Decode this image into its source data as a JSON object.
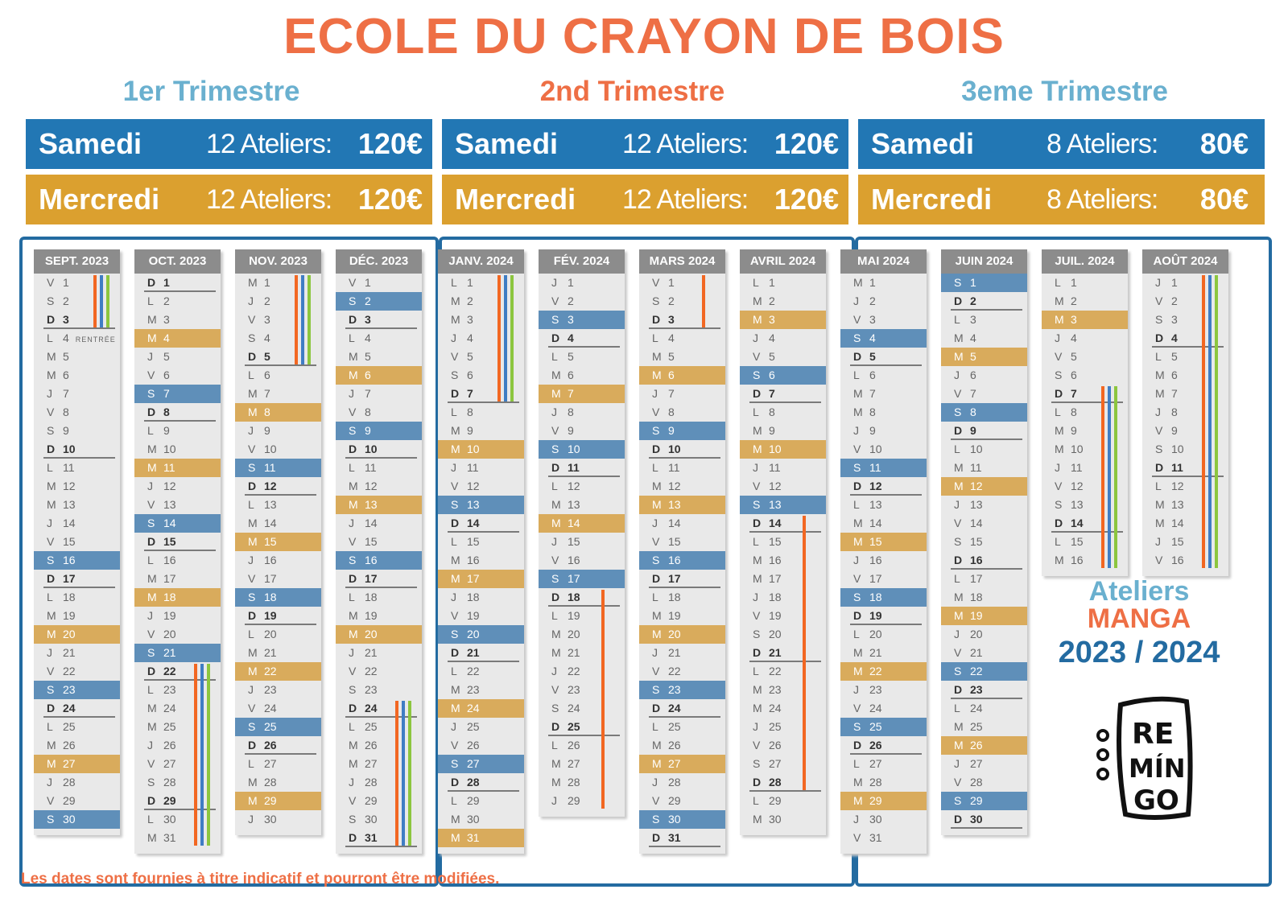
{
  "title": "ECOLE DU CRAYON DE BOIS",
  "colors": {
    "samedi": "#2277b4",
    "mercredi": "#dba02f",
    "title": "#ee6f45",
    "trimester": "#6ab0cf",
    "bar_orange": "#f26722",
    "bar_blue": "#3f7dc4",
    "bar_green": "#8cc63f"
  },
  "trimesters": [
    {
      "title": "1er Trimestre",
      "samedi": {
        "day": "Samedi",
        "count": "12 Ateliers:",
        "price": "120€"
      },
      "mercredi": {
        "day": "Mercredi",
        "count": "12 Ateliers:",
        "price": "120€"
      }
    },
    {
      "title": "2nd Trimestre",
      "samedi": {
        "day": "Samedi",
        "count": "12 Ateliers:",
        "price": "120€"
      },
      "mercredi": {
        "day": "Mercredi",
        "count": "12 Ateliers:",
        "price": "120€"
      }
    },
    {
      "title": "3eme Trimestre",
      "samedi": {
        "day": "Samedi",
        "count": "8 Ateliers:",
        "price": "80€"
      },
      "mercredi": {
        "day": "Mercredi",
        "count": "8 Ateliers:",
        "price": "80€"
      }
    }
  ],
  "months": [
    {
      "name": "SEPT. 2023",
      "days": [
        "V 1",
        "S 2",
        "D 3",
        "L 4",
        "M 5",
        "M 6",
        "J 7",
        "V 8",
        "S 9",
        "D 10",
        "L 11",
        "M 12",
        "M 13",
        "J 14",
        "V 15",
        "S 16",
        "D 17",
        "L 18",
        "M 19",
        "M 20",
        "J 21",
        "V 22",
        "S 23",
        "D 24",
        "L 25",
        "M 26",
        "M 27",
        "J 28",
        "V 29",
        "S 30"
      ],
      "workshop_saturdays": [
        16,
        23,
        30
      ],
      "workshop_wednesdays": [
        20,
        27
      ],
      "notes": {
        "4": "RENTRÉE"
      },
      "holidays": [
        {
          "from": 1,
          "to": 3
        }
      ]
    },
    {
      "name": "OCT. 2023",
      "days": [
        "D 1",
        "L 2",
        "M 3",
        "M 4",
        "J 5",
        "V 6",
        "S 7",
        "D 8",
        "L 9",
        "M 10",
        "M 11",
        "J 12",
        "V 13",
        "S 14",
        "D 15",
        "L 16",
        "M 17",
        "M 18",
        "J 19",
        "V 20",
        "S 21",
        "D 22",
        "L 23",
        "M 24",
        "M 25",
        "J 26",
        "V 27",
        "S 28",
        "D 29",
        "L 30",
        "M 31"
      ],
      "workshop_saturdays": [
        7,
        14,
        21
      ],
      "workshop_wednesdays": [
        4,
        11,
        18
      ],
      "notes": {},
      "holidays": [
        {
          "from": 22,
          "to": 31
        }
      ]
    },
    {
      "name": "NOV. 2023",
      "days": [
        "M 1",
        "J 2",
        "V 3",
        "S 4",
        "D 5",
        "L 6",
        "M 7",
        "M 8",
        "J 9",
        "V 10",
        "S 11",
        "D 12",
        "L 13",
        "M 14",
        "M 15",
        "J 16",
        "V 17",
        "S 18",
        "D 19",
        "L 20",
        "M 21",
        "M 22",
        "J 23",
        "V 24",
        "S 25",
        "D 26",
        "L 27",
        "M 28",
        "M 29",
        "J 30"
      ],
      "workshop_saturdays": [
        11,
        18,
        25
      ],
      "workshop_wednesdays": [
        8,
        15,
        22,
        29
      ],
      "notes": {},
      "holidays": [
        {
          "from": 1,
          "to": 5
        }
      ]
    },
    {
      "name": "DÉC. 2023",
      "days": [
        "V 1",
        "S 2",
        "D 3",
        "L 4",
        "M 5",
        "M 6",
        "J 7",
        "V 8",
        "S 9",
        "D 10",
        "L 11",
        "M 12",
        "M 13",
        "J 14",
        "V 15",
        "S 16",
        "D 17",
        "L 18",
        "M 19",
        "M 20",
        "J 21",
        "V 22",
        "S 23",
        "D 24",
        "L 25",
        "M 26",
        "M 27",
        "J 28",
        "V 29",
        "S 30",
        "D 31"
      ],
      "workshop_saturdays": [
        2,
        9,
        16
      ],
      "workshop_wednesdays": [
        6,
        13,
        20
      ],
      "notes": {},
      "holidays": [
        {
          "from": 24,
          "to": 31
        }
      ]
    },
    {
      "name": "JANV. 2024",
      "days": [
        "L 1",
        "M 2",
        "M 3",
        "J 4",
        "V 5",
        "S 6",
        "D 7",
        "L 8",
        "M 9",
        "M 10",
        "J 11",
        "V 12",
        "S 13",
        "D 14",
        "L 15",
        "M 16",
        "M 17",
        "J 18",
        "V 19",
        "S 20",
        "D 21",
        "L 22",
        "M 23",
        "M 24",
        "J 25",
        "V 26",
        "S 27",
        "D 28",
        "L 29",
        "M 30",
        "M 31"
      ],
      "workshop_saturdays": [
        13,
        20,
        27
      ],
      "workshop_wednesdays": [
        10,
        17,
        24,
        31
      ],
      "notes": {},
      "holidays": [
        {
          "from": 1,
          "to": 7
        }
      ]
    },
    {
      "name": "FÉV. 2024",
      "days": [
        "J 1",
        "V 2",
        "S 3",
        "D 4",
        "L 5",
        "M 6",
        "M 7",
        "J 8",
        "V 9",
        "S 10",
        "D 11",
        "L 12",
        "M 13",
        "M 14",
        "J 15",
        "V 16",
        "S 17",
        "D 18",
        "L 19",
        "M 20",
        "M 21",
        "J 22",
        "V 23",
        "S 24",
        "D 25",
        "L 26",
        "M 27",
        "M 28",
        "J 29"
      ],
      "workshop_saturdays": [
        3,
        10,
        17
      ],
      "workshop_wednesdays": [
        7,
        14
      ],
      "notes": {},
      "holidays": [
        {
          "from": 18,
          "to": 29,
          "only": "orange"
        }
      ]
    },
    {
      "name": "MARS 2024",
      "days": [
        "V 1",
        "S 2",
        "D 3",
        "L 4",
        "M 5",
        "M 6",
        "J 7",
        "V 8",
        "S 9",
        "D 10",
        "L 11",
        "M 12",
        "M 13",
        "J 14",
        "V 15",
        "S 16",
        "D 17",
        "L 18",
        "M 19",
        "M 20",
        "J 21",
        "V 22",
        "S 23",
        "D 24",
        "L 25",
        "M 26",
        "M 27",
        "J 28",
        "V 29",
        "S 30",
        "D 31"
      ],
      "workshop_saturdays": [
        9,
        16,
        23,
        30
      ],
      "workshop_wednesdays": [
        6,
        13,
        20,
        27
      ],
      "notes": {},
      "holidays": [
        {
          "from": 1,
          "to": 3,
          "only": "orange"
        }
      ]
    },
    {
      "name": "AVRIL 2024",
      "days": [
        "L 1",
        "M 2",
        "M 3",
        "J 4",
        "V 5",
        "S 6",
        "D 7",
        "L 8",
        "M 9",
        "M 10",
        "J 11",
        "V 12",
        "S 13",
        "D 14",
        "L 15",
        "M 16",
        "M 17",
        "J 18",
        "V 19",
        "S 20",
        "D 21",
        "L 22",
        "M 23",
        "M 24",
        "J 25",
        "V 26",
        "S 27",
        "D 28",
        "L 29",
        "M 30"
      ],
      "workshop_saturdays": [
        6,
        13
      ],
      "workshop_wednesdays": [
        3,
        10
      ],
      "notes": {},
      "holidays": [
        {
          "from": 14,
          "to": 28,
          "only": "orange"
        }
      ]
    },
    {
      "name": "MAI 2024",
      "days": [
        "M 1",
        "J 2",
        "V 3",
        "S 4",
        "D 5",
        "L 6",
        "M 7",
        "M 8",
        "J 9",
        "V 10",
        "S 11",
        "D 12",
        "L 13",
        "M 14",
        "M 15",
        "J 16",
        "V 17",
        "S 18",
        "D 19",
        "L 20",
        "M 21",
        "M 22",
        "J 23",
        "V 24",
        "S 25",
        "D 26",
        "L 27",
        "M 28",
        "M 29",
        "J 30",
        "V 31"
      ],
      "workshop_saturdays": [
        4,
        11,
        18,
        25
      ],
      "workshop_wednesdays": [
        15,
        22,
        29
      ],
      "notes": {},
      "holidays": []
    },
    {
      "name": "JUIN 2024",
      "days": [
        "S 1",
        "D 2",
        "L 3",
        "M 4",
        "M 5",
        "J 6",
        "V 7",
        "S 8",
        "D 9",
        "L 10",
        "M 11",
        "M 12",
        "J 13",
        "V 14",
        "S 15",
        "D 16",
        "L 17",
        "M 18",
        "M 19",
        "J 20",
        "V 21",
        "S 22",
        "D 23",
        "L 24",
        "M 25",
        "M 26",
        "J 27",
        "V 28",
        "S 29",
        "D 30"
      ],
      "workshop_saturdays": [
        1,
        8,
        22,
        29
      ],
      "workshop_wednesdays": [
        5,
        12,
        19,
        26
      ],
      "notes": {},
      "holidays": []
    },
    {
      "name": "JUIL. 2024",
      "days": [
        "L 1",
        "M 2",
        "M 3",
        "J 4",
        "V 5",
        "S 6",
        "D 7",
        "L 8",
        "M 9",
        "M 10",
        "J 11",
        "V 12",
        "S 13",
        "D 14",
        "L 15",
        "M 16"
      ],
      "workshop_saturdays": [],
      "workshop_wednesdays": [
        3
      ],
      "notes": {},
      "holidays": [
        {
          "from": 7,
          "to": 16
        }
      ]
    },
    {
      "name": "AOÛT 2024",
      "days": [
        "J 1",
        "V 2",
        "S 3",
        "D 4",
        "L 5",
        "M 6",
        "M 7",
        "J 8",
        "V 9",
        "S 10",
        "D 11",
        "L 12",
        "M 13",
        "M 14",
        "J 15",
        "V 16"
      ],
      "workshop_saturdays": [],
      "workshop_wednesdays": [],
      "notes": {},
      "holidays": [
        {
          "from": 1,
          "to": 16
        }
      ]
    }
  ],
  "logo": {
    "line1": "Ateliers",
    "line2": "MANGA",
    "line3": "2023 / 2024",
    "brand": "RE MÍN GO"
  },
  "footer": "Les dates sont fournies à titre indicatif et pourront être modifiées."
}
